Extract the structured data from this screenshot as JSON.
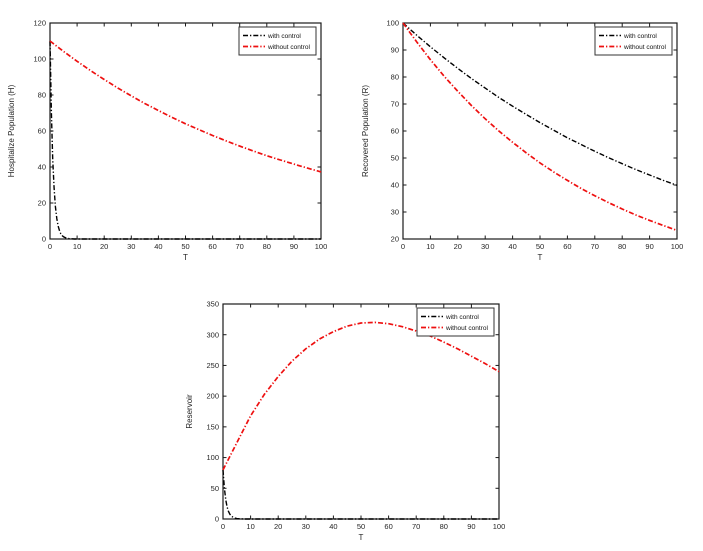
{
  "page": {
    "background": "#ffffff"
  },
  "chart_data": [
    {
      "id": "hospitalized",
      "type": "line",
      "title": "",
      "xlabel": "T",
      "ylabel": "Hospitalize Population (H)",
      "xlim": [
        0,
        100
      ],
      "ylim": [
        0,
        120
      ],
      "xticks": [
        0,
        10,
        20,
        30,
        40,
        50,
        60,
        70,
        80,
        90,
        100
      ],
      "yticks": [
        0,
        20,
        40,
        60,
        80,
        100,
        120
      ],
      "grid": false,
      "legend": {
        "position": "top-right",
        "entries": [
          "with control",
          "without control"
        ]
      },
      "series": [
        {
          "name": "with control",
          "color": "#000000",
          "linestyle": "dash-dot",
          "x": [
            0,
            0.5,
            1,
            1.5,
            2,
            2.5,
            3,
            3.5,
            4,
            4.5,
            5,
            6,
            7,
            8,
            9,
            10,
            15,
            20,
            25,
            30,
            35,
            40,
            45,
            50,
            55,
            60,
            65,
            70,
            75,
            80,
            85,
            90,
            95,
            100
          ],
          "y": [
            110,
            70,
            44.5,
            28.3,
            18,
            11.4,
            7.3,
            4.6,
            2.9,
            1.9,
            1.2,
            0.5,
            0.2,
            0.1,
            0,
            0,
            0,
            0,
            0,
            0,
            0,
            0,
            0,
            0,
            0,
            0,
            0,
            0,
            0,
            0,
            0,
            0,
            0,
            0
          ]
        },
        {
          "name": "without control",
          "color": "#ee1010",
          "linestyle": "dash-dot",
          "x": [
            0,
            5,
            10,
            15,
            20,
            25,
            30,
            35,
            40,
            45,
            50,
            55,
            60,
            65,
            70,
            75,
            80,
            85,
            90,
            95,
            100
          ],
          "y": [
            110,
            104.2,
            98.7,
            93.5,
            88.6,
            83.9,
            79.5,
            75.3,
            71.4,
            67.6,
            64.0,
            60.7,
            57.5,
            54.5,
            51.6,
            48.9,
            46.3,
            43.9,
            41.6,
            39.4,
            37.3
          ]
        }
      ]
    },
    {
      "id": "recovered",
      "type": "line",
      "title": "",
      "xlabel": "T",
      "ylabel": "Recovered Population (R)",
      "xlim": [
        0,
        100
      ],
      "ylim": [
        20,
        100
      ],
      "xticks": [
        0,
        10,
        20,
        30,
        40,
        50,
        60,
        70,
        80,
        90,
        100
      ],
      "yticks": [
        20,
        30,
        40,
        50,
        60,
        70,
        80,
        90,
        100
      ],
      "grid": false,
      "legend": {
        "position": "top-right",
        "entries": [
          "with control",
          "without control"
        ]
      },
      "series": [
        {
          "name": "with control",
          "color": "#000000",
          "linestyle": "dash-dot",
          "x": [
            0,
            5,
            10,
            15,
            20,
            25,
            30,
            35,
            40,
            45,
            50,
            55,
            60,
            65,
            70,
            75,
            80,
            85,
            90,
            95,
            100
          ],
          "y": [
            100,
            95.5,
            91.2,
            87.1,
            83.2,
            79.4,
            75.9,
            72.4,
            69.2,
            66.1,
            63.1,
            60.3,
            57.5,
            55.0,
            52.5,
            50.1,
            47.9,
            45.7,
            43.7,
            41.7,
            39.9
          ]
        },
        {
          "name": "without control",
          "color": "#ee1010",
          "linestyle": "dash-dot",
          "x": [
            0,
            5,
            10,
            15,
            20,
            25,
            30,
            35,
            40,
            45,
            50,
            55,
            60,
            65,
            70,
            75,
            80,
            85,
            90,
            95,
            100
          ],
          "y": [
            100,
            93.0,
            86.4,
            80.3,
            74.7,
            69.4,
            64.5,
            60.0,
            55.8,
            51.9,
            48.2,
            44.8,
            41.7,
            38.7,
            36.0,
            33.5,
            31.1,
            28.9,
            26.9,
            25.0,
            23.2
          ]
        }
      ]
    },
    {
      "id": "reservoir",
      "type": "line",
      "title": "",
      "xlabel": "T",
      "ylabel": "Reservoir",
      "xlim": [
        0,
        100
      ],
      "ylim": [
        0,
        350
      ],
      "xticks": [
        0,
        10,
        20,
        30,
        40,
        50,
        60,
        70,
        80,
        90,
        100
      ],
      "yticks": [
        0,
        50,
        100,
        150,
        200,
        250,
        300,
        350
      ],
      "grid": false,
      "legend": {
        "position": "top-right",
        "entries": [
          "with control",
          "without control"
        ]
      },
      "series": [
        {
          "name": "with control",
          "color": "#000000",
          "linestyle": "dash-dot",
          "x": [
            0,
            0.5,
            1,
            1.5,
            2,
            2.5,
            3,
            4,
            5,
            6,
            7,
            8,
            10,
            15,
            20,
            25,
            30,
            40,
            50,
            60,
            70,
            80,
            90,
            100
          ],
          "y": [
            80,
            50,
            31,
            19.5,
            12.2,
            7.6,
            4.8,
            1.9,
            0.7,
            0.3,
            0.1,
            0,
            0,
            0,
            0,
            0,
            0,
            0,
            0,
            0,
            0,
            0,
            0,
            0
          ]
        },
        {
          "name": "without control",
          "color": "#ee1010",
          "linestyle": "dash-dot",
          "x": [
            0,
            5,
            10,
            15,
            20,
            25,
            30,
            35,
            40,
            45,
            50,
            55,
            60,
            65,
            70,
            75,
            80,
            85,
            90,
            95,
            100
          ],
          "y": [
            80,
            124,
            168,
            203,
            232,
            257,
            277,
            293,
            305,
            314,
            319,
            320,
            318,
            313,
            306,
            298,
            288,
            277,
            265,
            253,
            240
          ]
        }
      ]
    }
  ]
}
